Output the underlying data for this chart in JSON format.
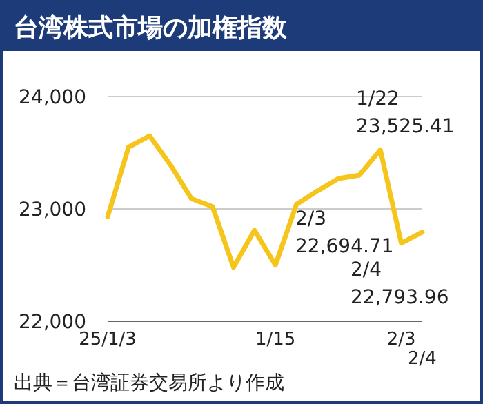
{
  "chart_data": {
    "type": "line",
    "title": "台湾株式市場の加権指数",
    "categories": [
      "25/1/3",
      null,
      null,
      null,
      null,
      null,
      null,
      null,
      "1/15",
      null,
      null,
      null,
      null,
      null,
      "2/3",
      "2/4"
    ],
    "series": [
      {
        "color": "#f5c51c",
        "values": [
          22930,
          23550,
          23650,
          23390,
          23090,
          23020,
          22480,
          22810,
          22500,
          23040,
          23160,
          23270,
          23300,
          23525.41,
          22694.71,
          22793.96
        ]
      }
    ],
    "ylim": [
      22000,
      24000
    ],
    "yticks": [
      {
        "value": 22000,
        "label": "22,000"
      },
      {
        "value": 23000,
        "label": "23,000"
      },
      {
        "value": 24000,
        "label": "24,000"
      }
    ],
    "grid": "y",
    "marker": "none",
    "line_style": "solid",
    "annotations": [
      "1/22\n23,525.41",
      "2/3\n22,694.71",
      "2/4\n22,793.96",
      "出典＝台湾証券交易所より作成"
    ]
  }
}
